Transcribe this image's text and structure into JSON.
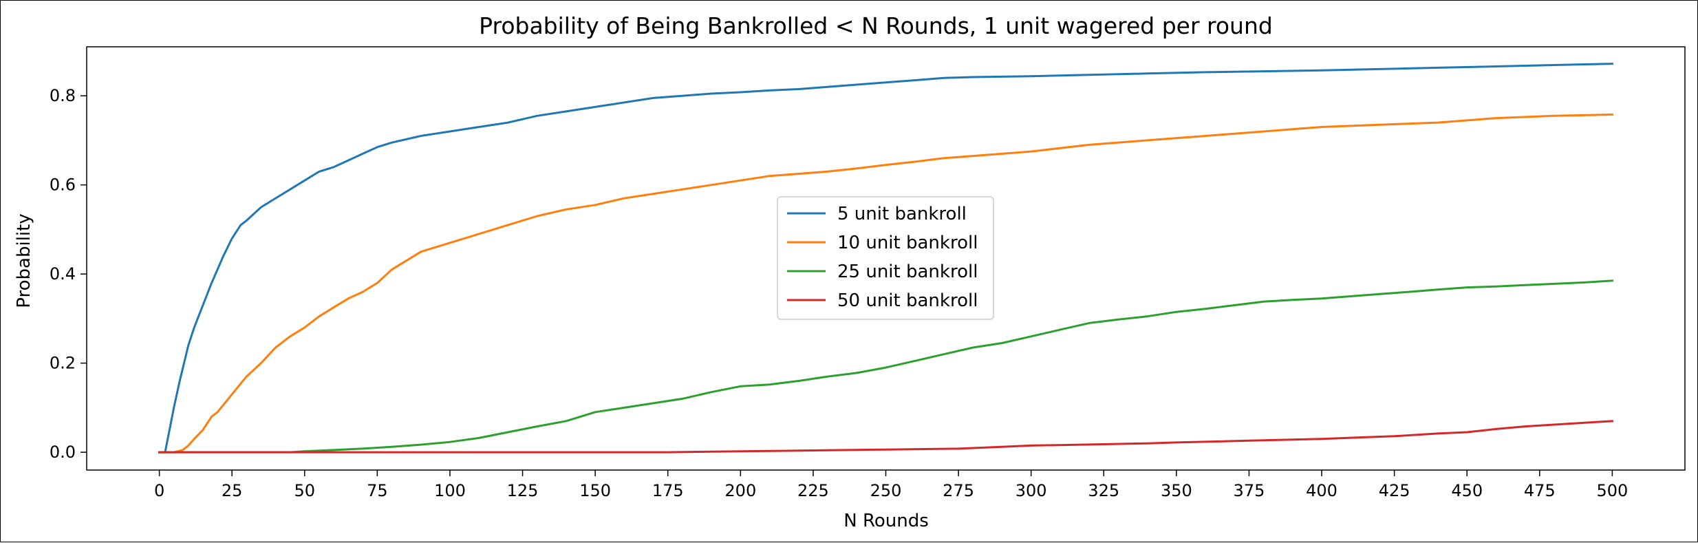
{
  "chart_data": {
    "type": "line",
    "title": "Probability of Being Bankrolled < N Rounds, 1 unit wagered per round",
    "xlabel": "N Rounds",
    "ylabel": "Probability",
    "xlim": [
      -25,
      525
    ],
    "ylim": [
      -0.04,
      0.91
    ],
    "x_ticks": [
      0,
      25,
      50,
      75,
      100,
      125,
      150,
      175,
      200,
      225,
      250,
      275,
      300,
      325,
      350,
      375,
      400,
      425,
      450,
      475,
      500
    ],
    "y_ticks": [
      0.0,
      0.2,
      0.4,
      0.6,
      0.8
    ],
    "y_tick_labels": [
      "0.0",
      "0.2",
      "0.4",
      "0.6",
      "0.8"
    ],
    "grid": false,
    "legend_position": "center",
    "series": [
      {
        "name": "5 unit bankroll",
        "color": "#1f77b4",
        "x": [
          0,
          2,
          5,
          7,
          10,
          12,
          15,
          18,
          20,
          22,
          25,
          28,
          30,
          35,
          40,
          45,
          50,
          55,
          60,
          65,
          70,
          75,
          80,
          90,
          100,
          110,
          120,
          130,
          140,
          150,
          160,
          170,
          180,
          190,
          200,
          210,
          220,
          230,
          240,
          250,
          260,
          270,
          280,
          290,
          300,
          320,
          340,
          360,
          380,
          400,
          420,
          440,
          460,
          480,
          500
        ],
        "y": [
          0.0,
          0.0,
          0.1,
          0.16,
          0.24,
          0.28,
          0.33,
          0.38,
          0.41,
          0.44,
          0.48,
          0.51,
          0.52,
          0.55,
          0.57,
          0.59,
          0.61,
          0.63,
          0.64,
          0.655,
          0.67,
          0.685,
          0.695,
          0.71,
          0.72,
          0.73,
          0.74,
          0.755,
          0.765,
          0.775,
          0.785,
          0.795,
          0.8,
          0.805,
          0.808,
          0.812,
          0.815,
          0.82,
          0.825,
          0.83,
          0.835,
          0.84,
          0.842,
          0.843,
          0.844,
          0.847,
          0.85,
          0.853,
          0.855,
          0.857,
          0.86,
          0.863,
          0.866,
          0.869,
          0.872
        ]
      },
      {
        "name": "10 unit bankroll",
        "color": "#ff7f0e",
        "x": [
          0,
          5,
          8,
          10,
          12,
          15,
          18,
          20,
          25,
          30,
          35,
          40,
          45,
          50,
          55,
          60,
          65,
          70,
          75,
          80,
          90,
          100,
          110,
          120,
          130,
          140,
          150,
          160,
          170,
          180,
          190,
          200,
          210,
          220,
          230,
          240,
          250,
          260,
          270,
          280,
          290,
          300,
          320,
          340,
          360,
          380,
          400,
          420,
          440,
          460,
          480,
          500
        ],
        "y": [
          0.0,
          0.0,
          0.005,
          0.015,
          0.03,
          0.05,
          0.08,
          0.09,
          0.13,
          0.17,
          0.2,
          0.235,
          0.26,
          0.28,
          0.305,
          0.325,
          0.345,
          0.36,
          0.38,
          0.41,
          0.45,
          0.47,
          0.49,
          0.51,
          0.53,
          0.545,
          0.555,
          0.57,
          0.58,
          0.59,
          0.6,
          0.61,
          0.62,
          0.625,
          0.63,
          0.637,
          0.645,
          0.652,
          0.66,
          0.665,
          0.67,
          0.675,
          0.69,
          0.7,
          0.71,
          0.72,
          0.73,
          0.735,
          0.74,
          0.75,
          0.755,
          0.758
        ]
      },
      {
        "name": "25 unit bankroll",
        "color": "#2ca02c",
        "x": [
          0,
          25,
          45,
          50,
          60,
          70,
          80,
          90,
          100,
          110,
          120,
          130,
          140,
          150,
          160,
          170,
          180,
          190,
          200,
          210,
          220,
          230,
          240,
          250,
          260,
          270,
          280,
          290,
          300,
          310,
          320,
          330,
          340,
          350,
          360,
          370,
          380,
          390,
          400,
          410,
          420,
          430,
          440,
          450,
          460,
          470,
          480,
          490,
          500
        ],
        "y": [
          0.0,
          0.0,
          0.0,
          0.002,
          0.005,
          0.008,
          0.012,
          0.017,
          0.023,
          0.032,
          0.045,
          0.058,
          0.07,
          0.09,
          0.1,
          0.11,
          0.12,
          0.135,
          0.148,
          0.152,
          0.16,
          0.17,
          0.178,
          0.19,
          0.205,
          0.22,
          0.235,
          0.245,
          0.26,
          0.275,
          0.29,
          0.298,
          0.305,
          0.315,
          0.322,
          0.33,
          0.338,
          0.342,
          0.345,
          0.35,
          0.355,
          0.36,
          0.365,
          0.37,
          0.372,
          0.375,
          0.378,
          0.381,
          0.385
        ]
      },
      {
        "name": "50 unit bankroll",
        "color": "#d62728",
        "x": [
          0,
          100,
          150,
          175,
          185,
          200,
          225,
          250,
          275,
          290,
          300,
          325,
          340,
          350,
          375,
          400,
          425,
          440,
          450,
          460,
          470,
          480,
          490,
          500
        ],
        "y": [
          0.0,
          0.0,
          0.0,
          0.0,
          0.001,
          0.002,
          0.004,
          0.006,
          0.008,
          0.012,
          0.015,
          0.018,
          0.02,
          0.022,
          0.026,
          0.03,
          0.036,
          0.042,
          0.045,
          0.052,
          0.058,
          0.062,
          0.066,
          0.07
        ]
      }
    ]
  }
}
